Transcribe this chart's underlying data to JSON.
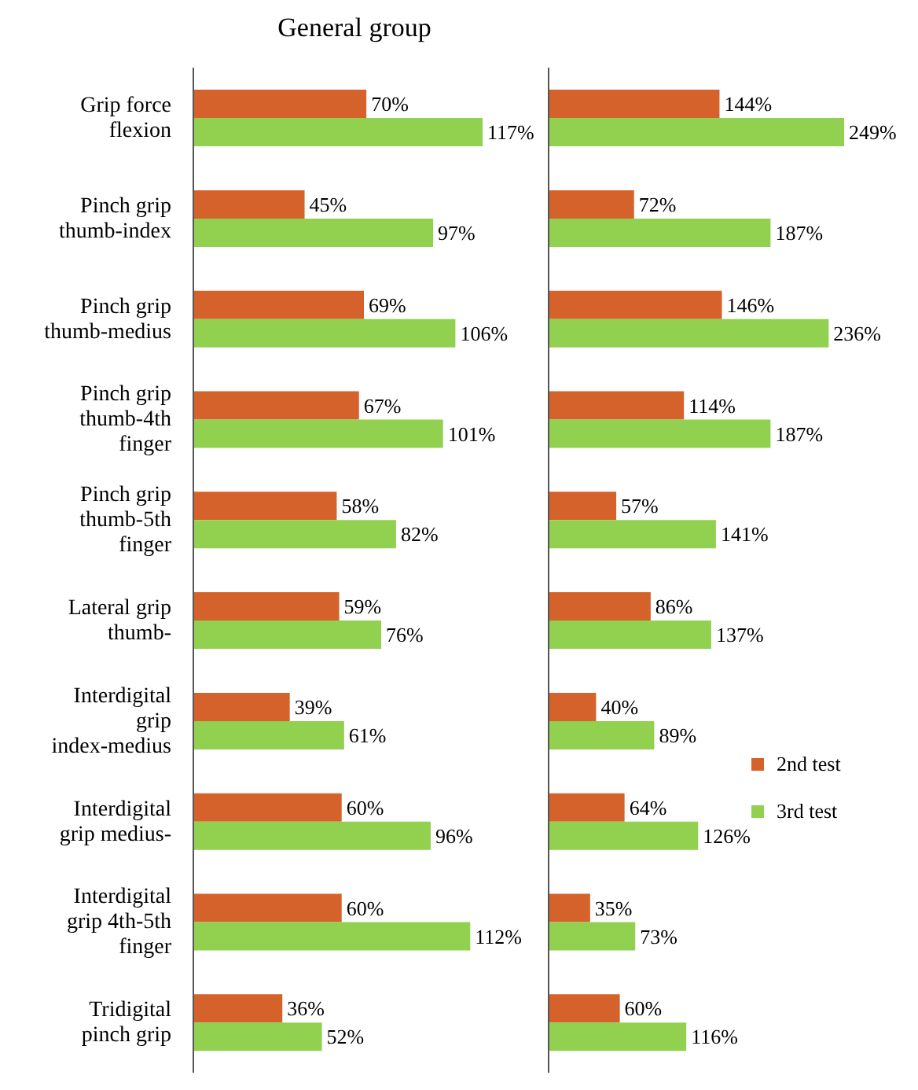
{
  "chart_data": [
    {
      "type": "bar",
      "orientation": "horizontal",
      "title": "General group",
      "categories": [
        "Grip force flexion",
        "Pinch grip thumb-index",
        "Pinch grip thumb-medius",
        "Pinch grip thumb-4th finger",
        "Pinch grip thumb-5th finger",
        "Lateral grip thumb-",
        "Interdigital grip index-medius",
        "Interdigital grip medius-",
        "Interdigital grip 4th-5th finger",
        "Tridigital pinch grip"
      ],
      "series": [
        {
          "color": "#d4622a",
          "values": [
            70,
            45,
            69,
            67,
            58,
            59,
            39,
            60,
            60,
            36
          ],
          "value_labels": [
            "70%",
            "45%",
            "69%",
            "67%",
            "58%",
            "59%",
            "39%",
            "60%",
            "60%",
            "36%"
          ]
        },
        {
          "color": "#92d050",
          "values": [
            117,
            97,
            106,
            101,
            82,
            76,
            61,
            96,
            112,
            52
          ],
          "value_labels": [
            "117%",
            "97%",
            "106%",
            "101%",
            "82%",
            "76%",
            "61%",
            "96%",
            "112%",
            "52%"
          ]
        }
      ],
      "tick_labels": "y"
    },
    {
      "type": "bar",
      "orientation": "horizontal",
      "categories": [
        null,
        null,
        null,
        null,
        null,
        null,
        null,
        null,
        null,
        null
      ],
      "series": [
        {
          "name": "2nd test",
          "color": "#d4622a",
          "values": [
            144,
            72,
            146,
            114,
            57,
            86,
            40,
            64,
            35,
            60
          ],
          "value_labels": [
            "144%",
            "72%",
            "146%",
            "114%",
            "57%",
            "86%",
            "40%",
            "64%",
            "35%",
            "60%"
          ]
        },
        {
          "name": "3rd test",
          "color": "#92d050",
          "values": [
            249,
            187,
            236,
            187,
            141,
            137,
            89,
            126,
            73,
            116
          ],
          "value_labels": [
            "249%",
            "187%",
            "236%",
            "187%",
            "141%",
            "137%",
            "89%",
            "126%",
            "73%",
            "116%"
          ]
        }
      ],
      "legend": "right",
      "tick_labels": false
    }
  ]
}
